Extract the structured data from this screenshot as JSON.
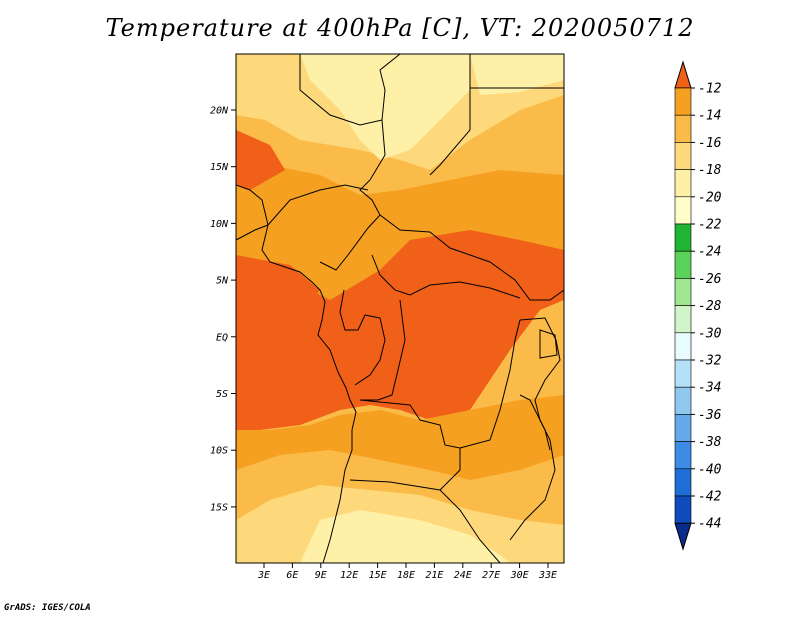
{
  "title": "Temperature at 400hPa [C], VT: 2020050712",
  "credit": "GrADS: IGES/COLA",
  "map": {
    "lat_labels": [
      "20N",
      "15N",
      "10N",
      "5N",
      "EQ",
      "5S",
      "10S",
      "15S"
    ],
    "lon_labels": [
      "3E",
      "6E",
      "9E",
      "12E",
      "15E",
      "18E",
      "21E",
      "24E",
      "27E",
      "30E",
      "33E"
    ],
    "field_colors": {
      "c12": "#f06018",
      "c14": "#f5a020",
      "c16": "#fbbb48",
      "c18": "#fdd97c",
      "c20": "#fff0a8"
    }
  },
  "colorbar": {
    "labels": [
      "-12",
      "-14",
      "-16",
      "-18",
      "-20",
      "-22",
      "-24",
      "-26",
      "-28",
      "-30",
      "-32",
      "-34",
      "-36",
      "-38",
      "-40",
      "-42",
      "-44"
    ],
    "colors": [
      "#f06018",
      "#f5a020",
      "#fbbb48",
      "#fdd97c",
      "#fff0a8",
      "#fffdc8",
      "#22b533",
      "#5bd35b",
      "#a0e690",
      "#d0f5c8",
      "#e8fbff",
      "#b4e1f7",
      "#91c8f0",
      "#64aaeb",
      "#3c8ce6",
      "#1f6ed7",
      "#0f4bbd",
      "#0a2d8c"
    ]
  }
}
